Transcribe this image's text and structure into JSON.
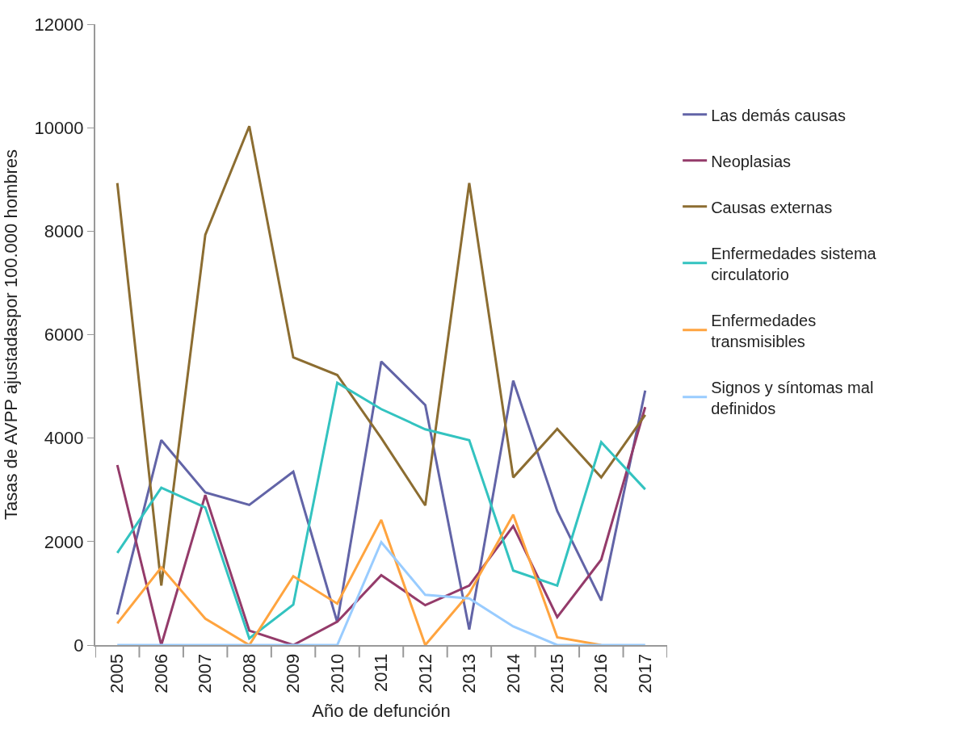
{
  "chart_data": {
    "type": "line",
    "xlabel": "Año de defunción",
    "ylabel": "Tasas de AVPP ajustadaspor 100.000 hombres",
    "categories": [
      "2005",
      "2006",
      "2007",
      "2008",
      "2009",
      "2010",
      "2011",
      "2012",
      "2013",
      "2014",
      "2015",
      "2016",
      "2017"
    ],
    "ylim": [
      0,
      12000
    ],
    "yticks": [
      0,
      2000,
      4000,
      6000,
      8000,
      10000,
      12000
    ],
    "legend": "right",
    "marker": "none",
    "line_style": "solid",
    "series": [
      {
        "name": "Las demás causas",
        "color": "#6264a7",
        "values": [
          590,
          3960,
          2950,
          2710,
          3350,
          440,
          5480,
          4640,
          300,
          5110,
          2590,
          860,
          4920
        ]
      },
      {
        "name": "Neoplasias",
        "color": "#943b6a",
        "values": [
          3480,
          0,
          2900,
          280,
          0,
          450,
          1350,
          770,
          1150,
          2300,
          540,
          1650,
          4600
        ]
      },
      {
        "name": "Causas externas",
        "color": "#8c6d31",
        "values": [
          8930,
          1150,
          7930,
          10030,
          5560,
          5220,
          4000,
          2700,
          8930,
          3240,
          4180,
          3240,
          4450
        ]
      },
      {
        "name": "Enfermedades sistema circulatorio",
        "color": "#33c3c0",
        "values": [
          1780,
          3040,
          2660,
          130,
          780,
          5070,
          4560,
          4170,
          3960,
          1440,
          1150,
          3920,
          3010
        ]
      },
      {
        "name": "Enfermedades transmisibles",
        "color": "#ffa43f",
        "values": [
          420,
          1500,
          510,
          0,
          1330,
          800,
          2420,
          0,
          1000,
          2520,
          150,
          0,
          null
        ]
      },
      {
        "name": "Signos y síntomas mal definidos",
        "color": "#99ccff",
        "values": [
          0,
          0,
          0,
          0,
          0,
          0,
          1990,
          970,
          900,
          360,
          0,
          0,
          0
        ]
      }
    ]
  }
}
